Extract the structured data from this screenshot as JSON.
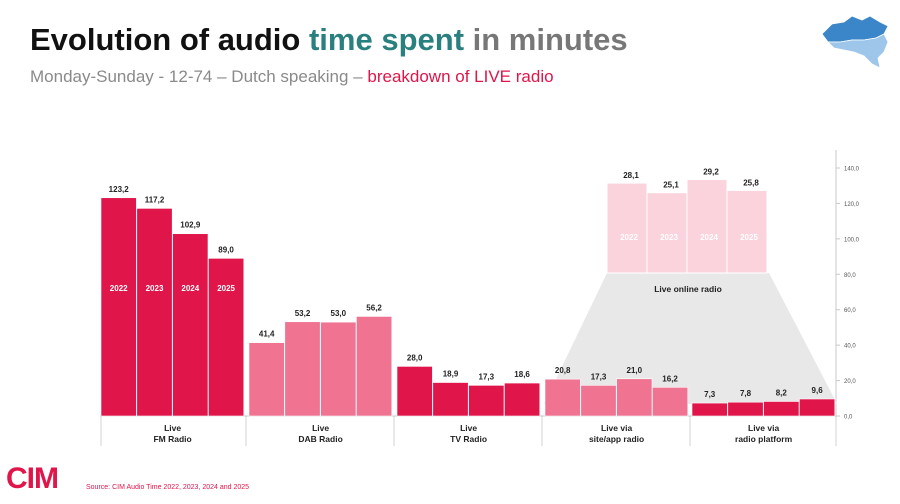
{
  "header": {
    "title_part1": "Evolution of audio ",
    "title_accent": "time spent",
    "title_part3": " in minutes",
    "subtitle_part1": "Monday-Sunday - 12-74 – Dutch speaking – ",
    "subtitle_highlight": "breakdown of LIVE radio"
  },
  "logo": {
    "text": "CIM"
  },
  "source": "Source: CIM Audio Time 2022, 2023, 2024 and 2025",
  "colors": {
    "fm": "#e0154a",
    "dab": "#f07391",
    "tv": "#e0154a",
    "site": "#f07391",
    "platform": "#e0154a",
    "online": "#fbd3dd",
    "funnel": "#e8e8e8",
    "axis": "#c8c8c8"
  },
  "chart_data": {
    "type": "bar",
    "series_years": [
      "2022",
      "2023",
      "2024",
      "2025"
    ],
    "ylim": [
      0,
      140
    ],
    "yticks": [
      "0,0",
      "20,0",
      "40,0",
      "60,0",
      "80,0",
      "100,0",
      "120,0",
      "140,0"
    ],
    "groups": [
      {
        "label_line1": "Live",
        "label_line2": "FM Radio",
        "values": [
          123.2,
          117.2,
          102.9,
          89.0
        ],
        "value_labels": [
          "123,2",
          "117,2",
          "102,9",
          "89,0"
        ],
        "year_labels_inside": true,
        "color_key": "fm"
      },
      {
        "label_line1": "Live",
        "label_line2": "DAB Radio",
        "values": [
          41.4,
          53.2,
          53.0,
          56.2
        ],
        "value_labels": [
          "41,4",
          "53,2",
          "53,0",
          "56,2"
        ],
        "year_labels_inside": false,
        "color_key": "dab"
      },
      {
        "label_line1": "Live",
        "label_line2": "TV Radio",
        "values": [
          28.0,
          18.9,
          17.3,
          18.6
        ],
        "value_labels": [
          "28,0",
          "18,9",
          "17,3",
          "18,6"
        ],
        "year_labels_inside": false,
        "color_key": "tv"
      },
      {
        "label_line1": "Live via",
        "label_line2": "site/app radio",
        "values": [
          20.8,
          17.3,
          21.0,
          16.2
        ],
        "value_labels": [
          "20,8",
          "17,3",
          "21,0",
          "16,2"
        ],
        "year_labels_inside": false,
        "color_key": "site"
      },
      {
        "label_line1": "Live via",
        "label_line2": "radio platform",
        "values": [
          7.3,
          7.8,
          8.2,
          9.6
        ],
        "value_labels": [
          "7,3",
          "7,8",
          "8,2",
          "9,6"
        ],
        "year_labels_inside": false,
        "color_key": "platform"
      }
    ],
    "inset": {
      "label": "Live online radio",
      "values": [
        28.1,
        25.1,
        29.2,
        25.8
      ],
      "value_labels": [
        "28,1",
        "25,1",
        "29,2",
        "25,8"
      ],
      "year_labels": [
        "2022",
        "2023",
        "2024",
        "2025"
      ]
    }
  }
}
